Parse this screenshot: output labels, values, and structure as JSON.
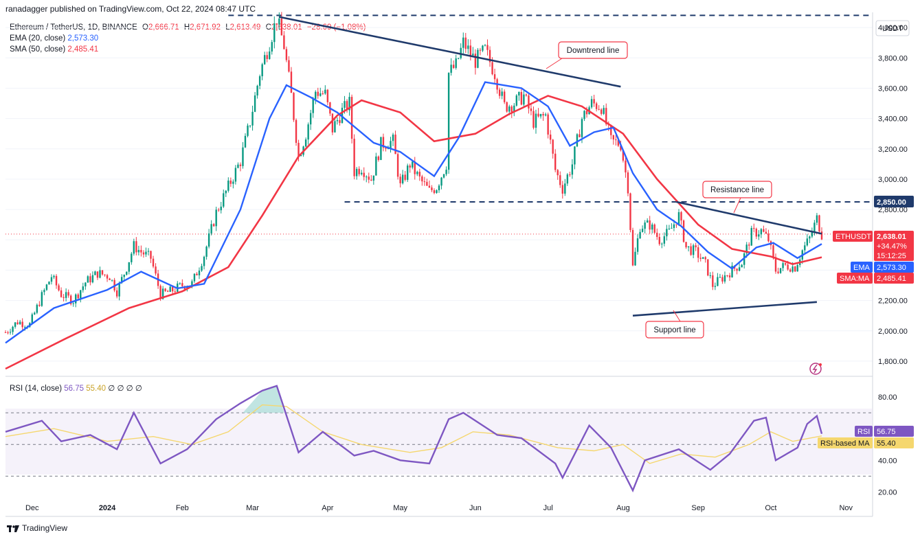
{
  "header": {
    "publisher": "ranadagger published on TradingView.com, Oct 22, 2024 08:47 UTC"
  },
  "legend": {
    "symbol": "Ethereum / TetherUS, 1D, BINANCE",
    "o_label": "O",
    "o": "2,666.71",
    "h_label": "H",
    "h": "2,671.92",
    "l_label": "L",
    "l": "2,613.49",
    "c_label": "C",
    "c": "2,638.01",
    "change": "−28.69 (−1.08%)",
    "ema_label": "EMA (20, close)",
    "ema": "2,573.30",
    "sma_label": "SMA (50, close)",
    "sma": "2,485.41"
  },
  "rsi_legend": {
    "label": "RSI (14, close)",
    "rsi": "56.75",
    "ma": "55.40",
    "extra": "∅ ∅ ∅ ∅"
  },
  "currency": "USDT",
  "annotations": {
    "downtrend": "Downtrend line",
    "resistance": "Resistance line",
    "support": "Support line"
  },
  "price_tags": {
    "level": "2,850.00",
    "symbol": "ETHUSDT",
    "price": "2,638.01",
    "change_pct": "+34.47%",
    "countdown": "15:12:25",
    "ema_label": "EMA",
    "ema": "2,573.30",
    "sma_label": "SMA:MA",
    "sma": "2,485.41",
    "rsi_label": "RSI",
    "rsi": "56.75",
    "rsi_ma_label": "RSI-based MA",
    "rsi_ma": "55.40"
  },
  "brand": "TradingView",
  "colors": {
    "candle_up": "#089981",
    "candle_down": "#f23645",
    "ema": "#2962ff",
    "sma": "#f23645",
    "trendline": "#1f3a6b",
    "rsi": "#7e57c2",
    "rsi_ma": "#f5d76e",
    "rsi_band": "#ede7f6"
  },
  "chart_data": {
    "type": "candlestick",
    "price_axis": {
      "ticks": [
        1800,
        2000,
        2200,
        2400,
        2600,
        2800,
        3000,
        3200,
        3400,
        3600,
        3800,
        4000
      ],
      "tick_labels": [
        "1,800.00",
        "2,000.00",
        "2,200.00",
        "2,400.00",
        "2,600.00",
        "2,800.00",
        "3,000.00",
        "3,200.00",
        "3,400.00",
        "3,600.00",
        "3,800.00",
        "4,000.00"
      ],
      "ylim": [
        1700,
        4100
      ]
    },
    "time_axis": {
      "ticks": [
        "Dec",
        "2024",
        "Feb",
        "Mar",
        "Apr",
        "May",
        "Jun",
        "Jul",
        "Aug",
        "Sep",
        "Oct",
        "Nov"
      ],
      "xlim": [
        "2023-11-20",
        "2024-11-12"
      ]
    },
    "close_series": [
      [
        "2023-11-20",
        1990
      ],
      [
        "2023-11-25",
        2060
      ],
      [
        "2023-11-30",
        2040
      ],
      [
        "2023-12-05",
        2230
      ],
      [
        "2023-12-09",
        2360
      ],
      [
        "2023-12-13",
        2240
      ],
      [
        "2023-12-18",
        2200
      ],
      [
        "2023-12-23",
        2320
      ],
      [
        "2023-12-28",
        2380
      ],
      [
        "2024-01-02",
        2360
      ],
      [
        "2024-01-05",
        2260
      ],
      [
        "2024-01-09",
        2420
      ],
      [
        "2024-01-12",
        2560
      ],
      [
        "2024-01-15",
        2520
      ],
      [
        "2024-01-19",
        2480
      ],
      [
        "2024-01-23",
        2240
      ],
      [
        "2024-01-27",
        2260
      ],
      [
        "2024-02-01",
        2300
      ],
      [
        "2024-02-05",
        2310
      ],
      [
        "2024-02-10",
        2500
      ],
      [
        "2024-02-15",
        2780
      ],
      [
        "2024-02-20",
        2950
      ],
      [
        "2024-02-25",
        3120
      ],
      [
        "2024-02-29",
        3380
      ],
      [
        "2024-03-04",
        3700
      ],
      [
        "2024-03-08",
        3900
      ],
      [
        "2024-03-11",
        4060
      ],
      [
        "2024-03-14",
        3880
      ],
      [
        "2024-03-17",
        3550
      ],
      [
        "2024-03-20",
        3150
      ],
      [
        "2024-03-23",
        3300
      ],
      [
        "2024-03-27",
        3580
      ],
      [
        "2024-03-31",
        3560
      ],
      [
        "2024-04-03",
        3330
      ],
      [
        "2024-04-07",
        3450
      ],
      [
        "2024-04-10",
        3500
      ],
      [
        "2024-04-12",
        3050
      ],
      [
        "2024-04-15",
        3080
      ],
      [
        "2024-04-19",
        3000
      ],
      [
        "2024-04-23",
        3230
      ],
      [
        "2024-04-28",
        3250
      ],
      [
        "2024-05-01",
        2950
      ],
      [
        "2024-05-05",
        3100
      ],
      [
        "2024-05-09",
        3000
      ],
      [
        "2024-05-13",
        2920
      ],
      [
        "2024-05-16",
        2950
      ],
      [
        "2024-05-20",
        3100
      ],
      [
        "2024-05-21",
        3700
      ],
      [
        "2024-05-24",
        3750
      ],
      [
        "2024-05-27",
        3900
      ],
      [
        "2024-06-01",
        3780
      ],
      [
        "2024-06-05",
        3850
      ],
      [
        "2024-06-09",
        3700
      ],
      [
        "2024-06-13",
        3480
      ],
      [
        "2024-06-17",
        3500
      ],
      [
        "2024-06-21",
        3550
      ],
      [
        "2024-06-25",
        3380
      ],
      [
        "2024-06-30",
        3420
      ],
      [
        "2024-07-04",
        3060
      ],
      [
        "2024-07-07",
        2940
      ],
      [
        "2024-07-11",
        3100
      ],
      [
        "2024-07-15",
        3400
      ],
      [
        "2024-07-19",
        3500
      ],
      [
        "2024-07-23",
        3480
      ],
      [
        "2024-07-27",
        3250
      ],
      [
        "2024-07-31",
        3230
      ],
      [
        "2024-08-03",
        2950
      ],
      [
        "2024-08-05",
        2420
      ],
      [
        "2024-08-08",
        2690
      ],
      [
        "2024-08-12",
        2700
      ],
      [
        "2024-08-16",
        2600
      ],
      [
        "2024-08-20",
        2650
      ],
      [
        "2024-08-24",
        2760
      ],
      [
        "2024-08-27",
        2550
      ],
      [
        "2024-08-31",
        2520
      ],
      [
        "2024-09-04",
        2440
      ],
      [
        "2024-09-07",
        2300
      ],
      [
        "2024-09-11",
        2350
      ],
      [
        "2024-09-15",
        2400
      ],
      [
        "2024-09-19",
        2450
      ],
      [
        "2024-09-23",
        2640
      ],
      [
        "2024-09-27",
        2660
      ],
      [
        "2024-09-30",
        2600
      ],
      [
        "2024-10-03",
        2400
      ],
      [
        "2024-10-07",
        2430
      ],
      [
        "2024-10-11",
        2420
      ],
      [
        "2024-10-14",
        2530
      ],
      [
        "2024-10-17",
        2610
      ],
      [
        "2024-10-20",
        2740
      ],
      [
        "2024-10-22",
        2638
      ]
    ],
    "ema20": [
      [
        "2023-11-20",
        1920
      ],
      [
        "2023-12-10",
        2150
      ],
      [
        "2024-01-01",
        2270
      ],
      [
        "2024-01-15",
        2390
      ],
      [
        "2024-01-30",
        2280
      ],
      [
        "2024-02-10",
        2310
      ],
      [
        "2024-02-25",
        2800
      ],
      [
        "2024-03-08",
        3400
      ],
      [
        "2024-03-15",
        3620
      ],
      [
        "2024-03-25",
        3540
      ],
      [
        "2024-04-05",
        3440
      ],
      [
        "2024-04-20",
        3240
      ],
      [
        "2024-05-01",
        3180
      ],
      [
        "2024-05-15",
        3020
      ],
      [
        "2024-05-25",
        3270
      ],
      [
        "2024-06-05",
        3640
      ],
      [
        "2024-06-20",
        3600
      ],
      [
        "2024-07-01",
        3480
      ],
      [
        "2024-07-10",
        3220
      ],
      [
        "2024-07-20",
        3310
      ],
      [
        "2024-07-28",
        3340
      ],
      [
        "2024-08-05",
        3040
      ],
      [
        "2024-08-15",
        2800
      ],
      [
        "2024-08-25",
        2690
      ],
      [
        "2024-09-05",
        2520
      ],
      [
        "2024-09-15",
        2410
      ],
      [
        "2024-09-25",
        2550
      ],
      [
        "2024-10-02",
        2580
      ],
      [
        "2024-10-12",
        2480
      ],
      [
        "2024-10-22",
        2573
      ]
    ],
    "sma50": [
      [
        "2023-11-20",
        1750
      ],
      [
        "2023-12-15",
        1950
      ],
      [
        "2024-01-10",
        2150
      ],
      [
        "2024-02-01",
        2260
      ],
      [
        "2024-02-20",
        2420
      ],
      [
        "2024-03-05",
        2760
      ],
      [
        "2024-03-20",
        3150
      ],
      [
        "2024-04-05",
        3420
      ],
      [
        "2024-04-15",
        3520
      ],
      [
        "2024-05-01",
        3440
      ],
      [
        "2024-05-15",
        3250
      ],
      [
        "2024-06-01",
        3300
      ],
      [
        "2024-06-15",
        3430
      ],
      [
        "2024-07-01",
        3550
      ],
      [
        "2024-07-15",
        3480
      ],
      [
        "2024-08-01",
        3300
      ],
      [
        "2024-08-15",
        3000
      ],
      [
        "2024-09-01",
        2700
      ],
      [
        "2024-09-15",
        2540
      ],
      [
        "2024-10-01",
        2490
      ],
      [
        "2024-10-10",
        2440
      ],
      [
        "2024-10-22",
        2485
      ]
    ],
    "rsi": {
      "axis_ticks": [
        20,
        40,
        60,
        80
      ],
      "axis_labels": [
        "20.00",
        "40.00",
        "60.00",
        "80.00"
      ],
      "bands": [
        30,
        50,
        70
      ],
      "values": [
        [
          "2023-11-20",
          58
        ],
        [
          "2023-12-05",
          65
        ],
        [
          "2023-12-13",
          52
        ],
        [
          "2023-12-25",
          56
        ],
        [
          "2024-01-05",
          47
        ],
        [
          "2024-01-12",
          70
        ],
        [
          "2024-01-23",
          38
        ],
        [
          "2024-02-03",
          47
        ],
        [
          "2024-02-15",
          66
        ],
        [
          "2024-02-25",
          76
        ],
        [
          "2024-03-05",
          84
        ],
        [
          "2024-03-11",
          87
        ],
        [
          "2024-03-20",
          45
        ],
        [
          "2024-03-30",
          58
        ],
        [
          "2024-04-12",
          43
        ],
        [
          "2024-04-20",
          46
        ],
        [
          "2024-05-01",
          40
        ],
        [
          "2024-05-13",
          38
        ],
        [
          "2024-05-21",
          66
        ],
        [
          "2024-05-27",
          70
        ],
        [
          "2024-06-10",
          56
        ],
        [
          "2024-06-20",
          54
        ],
        [
          "2024-07-04",
          38
        ],
        [
          "2024-07-07",
          29
        ],
        [
          "2024-07-18",
          62
        ],
        [
          "2024-07-27",
          48
        ],
        [
          "2024-08-05",
          21
        ],
        [
          "2024-08-10",
          40
        ],
        [
          "2024-08-24",
          47
        ],
        [
          "2024-09-06",
          34
        ],
        [
          "2024-09-14",
          44
        ],
        [
          "2024-09-24",
          65
        ],
        [
          "2024-09-29",
          67
        ],
        [
          "2024-10-03",
          40
        ],
        [
          "2024-10-12",
          48
        ],
        [
          "2024-10-16",
          63
        ],
        [
          "2024-10-20",
          68
        ],
        [
          "2024-10-22",
          56.75
        ]
      ],
      "ma": [
        [
          "2023-11-20",
          55
        ],
        [
          "2023-12-10",
          60
        ],
        [
          "2024-01-01",
          52
        ],
        [
          "2024-01-20",
          55
        ],
        [
          "2024-02-05",
          50
        ],
        [
          "2024-02-20",
          58
        ],
        [
          "2024-03-05",
          75
        ],
        [
          "2024-03-15",
          74
        ],
        [
          "2024-03-30",
          58
        ],
        [
          "2024-04-15",
          50
        ],
        [
          "2024-05-05",
          45
        ],
        [
          "2024-05-18",
          48
        ],
        [
          "2024-05-31",
          58
        ],
        [
          "2024-06-15",
          56
        ],
        [
          "2024-07-05",
          48
        ],
        [
          "2024-07-20",
          46
        ],
        [
          "2024-08-01",
          50
        ],
        [
          "2024-08-12",
          38
        ],
        [
          "2024-08-25",
          44
        ],
        [
          "2024-09-08",
          42
        ],
        [
          "2024-09-22",
          50
        ],
        [
          "2024-10-01",
          58
        ],
        [
          "2024-10-10",
          52
        ],
        [
          "2024-10-22",
          55.4
        ]
      ]
    },
    "trendlines": [
      {
        "name": "Downtrend line",
        "from": [
          "2024-03-12",
          4070
        ],
        "to": [
          "2024-07-31",
          3610
        ]
      },
      {
        "name": "Resistance line",
        "from": [
          "2024-08-23",
          2850
        ],
        "to": [
          "2024-10-22",
          2640
        ]
      },
      {
        "name": "Support line",
        "from": [
          "2024-08-05",
          2100
        ],
        "to": [
          "2024-10-20",
          2190
        ]
      }
    ],
    "horizontal_levels": [
      {
        "value": 4080,
        "from": "2024-02-20",
        "to": "2024-11-12"
      },
      {
        "value": 2850,
        "from": "2024-04-08",
        "to": "2024-11-12"
      }
    ]
  }
}
